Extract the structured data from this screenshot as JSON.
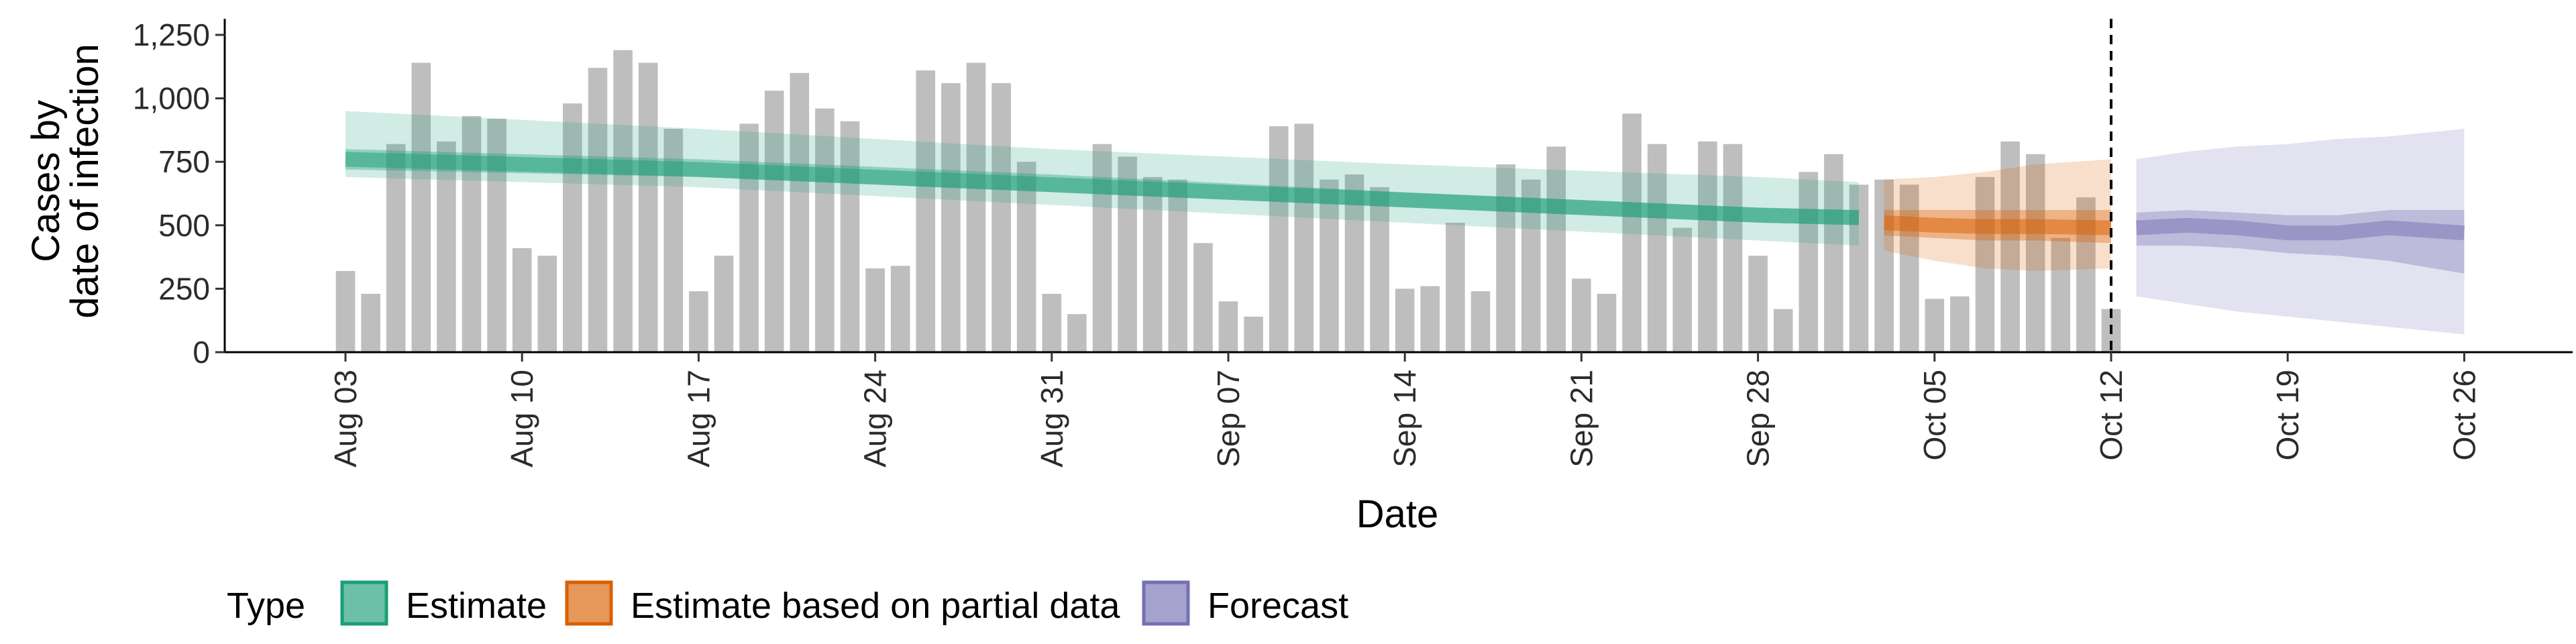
{
  "chart_data": {
    "type": "bar",
    "xlabel": "Date",
    "ylabel_lines": [
      "Cases by",
      "date of infection"
    ],
    "ylim": [
      0,
      1250
    ],
    "yticks": [
      0,
      250,
      500,
      750,
      1000,
      1250
    ],
    "ytick_labels": [
      "0",
      "250",
      "500",
      "750",
      "1,000",
      "1,250"
    ],
    "xlim": [
      "2020-08-03",
      "2020-10-26"
    ],
    "xticks": [
      "2020-08-03",
      "2020-08-10",
      "2020-08-17",
      "2020-08-24",
      "2020-08-31",
      "2020-09-07",
      "2020-09-14",
      "2020-09-21",
      "2020-09-28",
      "2020-10-05",
      "2020-10-12",
      "2020-10-19",
      "2020-10-26"
    ],
    "xtick_labels": [
      "Aug 03",
      "Aug 10",
      "Aug 17",
      "Aug 24",
      "Aug 31",
      "Sep 07",
      "Sep 14",
      "Sep 21",
      "Sep 28",
      "Oct 05",
      "Oct 12",
      "Oct 19",
      "Oct 26"
    ],
    "vline_date": "2020-10-12",
    "bars": {
      "start_date": "2020-08-03",
      "values": [
        320,
        230,
        820,
        1140,
        830,
        930,
        920,
        410,
        380,
        980,
        1120,
        1190,
        1140,
        880,
        240,
        380,
        900,
        1030,
        1100,
        960,
        910,
        330,
        340,
        1110,
        1060,
        1140,
        1060,
        750,
        230,
        150,
        820,
        770,
        690,
        680,
        430,
        200,
        140,
        890,
        900,
        680,
        700,
        650,
        250,
        260,
        510,
        240,
        740,
        680,
        810,
        290,
        230,
        940,
        820,
        490,
        830,
        820,
        380,
        170,
        710,
        780,
        660,
        680,
        660,
        210,
        220,
        690,
        830,
        780,
        450,
        610,
        170
      ]
    },
    "series": [
      {
        "name": "Estimate",
        "color": "#1b9e77",
        "x": [
          "2020-08-03",
          "2020-08-17",
          "2020-08-31",
          "2020-09-14",
          "2020-09-28",
          "2020-10-02"
        ],
        "median": [
          760,
          720,
          660,
          600,
          540,
          530
        ],
        "inner_lower": [
          720,
          690,
          630,
          570,
          510,
          500
        ],
        "inner_upper": [
          800,
          760,
          700,
          630,
          570,
          560
        ],
        "outer_lower": [
          690,
          650,
          580,
          510,
          440,
          420
        ],
        "outer_upper": [
          950,
          880,
          800,
          740,
          690,
          670
        ]
      },
      {
        "name": "Estimate based on partial data",
        "color": "#d95f02",
        "x": [
          "2020-10-03",
          "2020-10-05",
          "2020-10-07",
          "2020-10-09",
          "2020-10-12"
        ],
        "median": [
          510,
          500,
          495,
          495,
          490
        ],
        "inner_lower": [
          460,
          450,
          440,
          440,
          430
        ],
        "inner_upper": [
          560,
          560,
          560,
          560,
          560
        ],
        "outer_lower": [
          400,
          360,
          330,
          320,
          330
        ],
        "outer_upper": [
          680,
          690,
          710,
          740,
          760
        ]
      },
      {
        "name": "Forecast",
        "color": "#7570b3",
        "x": [
          "2020-10-13",
          "2020-10-15",
          "2020-10-17",
          "2020-10-19",
          "2020-10-21",
          "2020-10-23",
          "2020-10-26"
        ],
        "median": [
          490,
          500,
          490,
          470,
          470,
          490,
          470
        ],
        "inner_lower": [
          420,
          420,
          410,
          390,
          380,
          360,
          310
        ],
        "inner_upper": [
          550,
          560,
          550,
          540,
          540,
          560,
          560
        ],
        "outer_lower": [
          220,
          190,
          160,
          140,
          120,
          100,
          70
        ],
        "outer_upper": [
          760,
          790,
          810,
          820,
          840,
          850,
          880
        ]
      }
    ],
    "legend": {
      "title": "Type",
      "position": "bottom",
      "items": [
        "Estimate",
        "Estimate based on partial data",
        "Forecast"
      ]
    },
    "grid": false
  }
}
